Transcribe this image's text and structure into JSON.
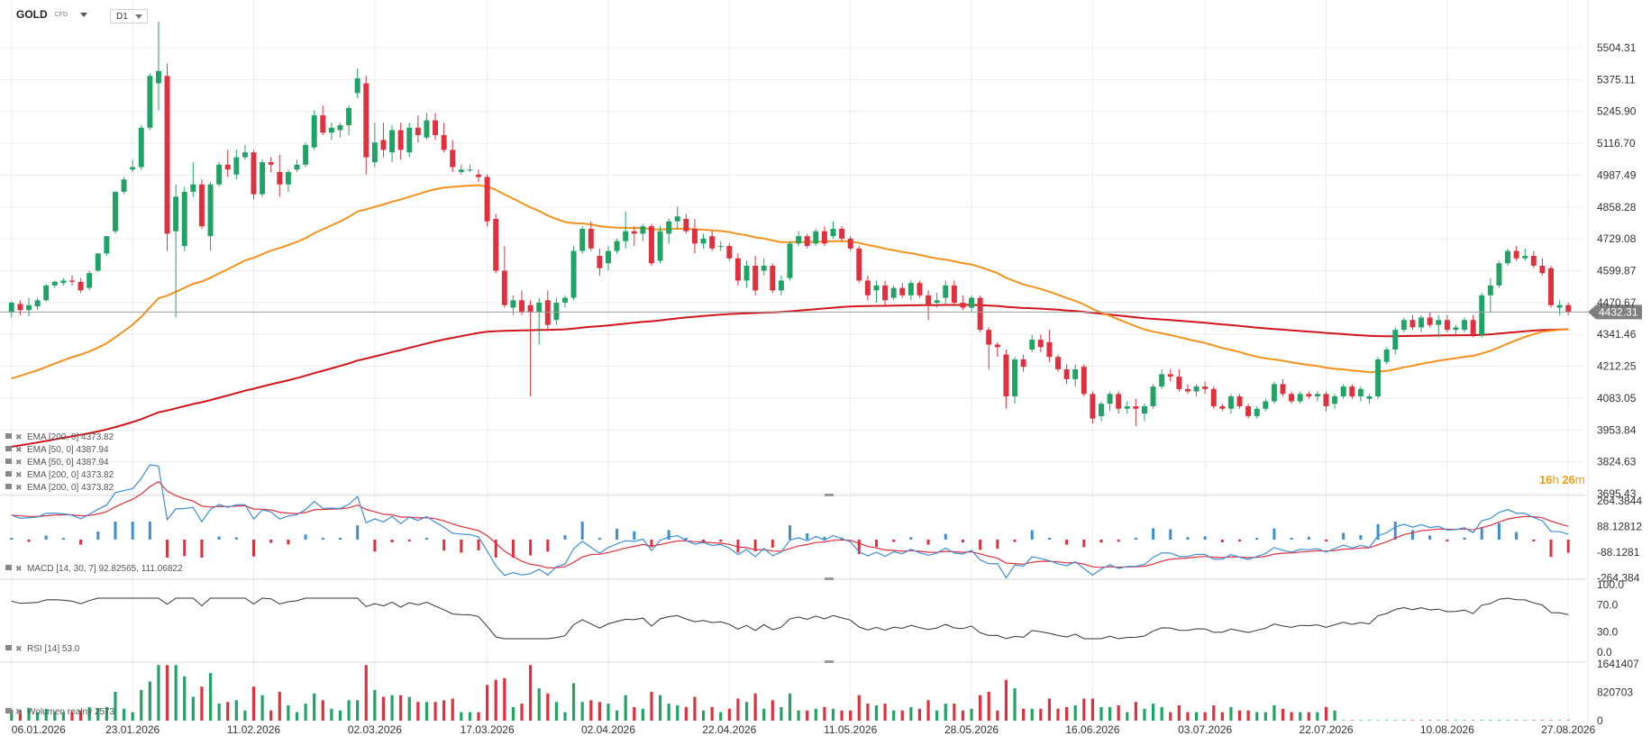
{
  "header": {
    "symbol": "GOLD",
    "symbol_sub": "CFD",
    "timeframe": "D1"
  },
  "countdown": {
    "h": "16",
    "h_unit": "h",
    "m": "26",
    "m_unit": "m"
  },
  "colors": {
    "up": "#21a366",
    "down": "#e0303e",
    "ema50": "#f5921e",
    "ema200": "#d2141c",
    "macd_line": "#3c8fd6",
    "macd_signal": "#e0303e",
    "rsi_line": "#333333",
    "grid": "#ececec"
  },
  "chart_data": {
    "type": "candlestick",
    "price_axis": {
      "ticks": [
        "5504.31",
        "5375.11",
        "5245.90",
        "5116.70",
        "4987.49",
        "4858.28",
        "4729.08",
        "4599.87",
        "4470.67",
        "4341.46",
        "4212.25",
        "4083.05",
        "3953.84",
        "3824.63",
        "3695.43"
      ],
      "last_price": "4432.31"
    },
    "x_labels": [
      "06.01.2026",
      "23.01.2026",
      "11.02.2026",
      "02.03.2026",
      "17.03.2026",
      "02.04.2026",
      "22.04.2026",
      "11.05.2026",
      "28.05.2026",
      "16.06.2026",
      "03.07.2026",
      "22.07.2026",
      "10.08.2026",
      "27.08.2026"
    ],
    "candles": [
      {
        "o": 4430,
        "h": 4475,
        "l": 4410,
        "c": 4470
      },
      {
        "o": 4465,
        "h": 4480,
        "l": 4420,
        "c": 4440
      },
      {
        "o": 4440,
        "h": 4490,
        "l": 4415,
        "c": 4460
      },
      {
        "o": 4455,
        "h": 4490,
        "l": 4440,
        "c": 4480
      },
      {
        "o": 4480,
        "h": 4545,
        "l": 4475,
        "c": 4540
      },
      {
        "o": 4540,
        "h": 4560,
        "l": 4530,
        "c": 4555
      },
      {
        "o": 4550,
        "h": 4570,
        "l": 4540,
        "c": 4560
      },
      {
        "o": 4560,
        "h": 4580,
        "l": 4540,
        "c": 4555
      },
      {
        "o": 4555,
        "h": 4570,
        "l": 4510,
        "c": 4520
      },
      {
        "o": 4530,
        "h": 4600,
        "l": 4520,
        "c": 4590
      },
      {
        "o": 4600,
        "h": 4670,
        "l": 4595,
        "c": 4670
      },
      {
        "o": 4670,
        "h": 4740,
        "l": 4660,
        "c": 4740
      },
      {
        "o": 4760,
        "h": 4920,
        "l": 4750,
        "c": 4920
      },
      {
        "o": 4920,
        "h": 4980,
        "l": 4910,
        "c": 4970
      },
      {
        "o": 5010,
        "h": 5050,
        "l": 5000,
        "c": 5020
      },
      {
        "o": 5020,
        "h": 5190,
        "l": 5010,
        "c": 5180
      },
      {
        "o": 5180,
        "h": 5400,
        "l": 5170,
        "c": 5390
      },
      {
        "o": 5360,
        "h": 5610,
        "l": 5250,
        "c": 5410
      },
      {
        "o": 5390,
        "h": 5440,
        "l": 4680,
        "c": 4750
      },
      {
        "o": 4760,
        "h": 4950,
        "l": 4410,
        "c": 4900
      },
      {
        "o": 4700,
        "h": 4940,
        "l": 4680,
        "c": 4920
      },
      {
        "o": 4920,
        "h": 5040,
        "l": 4900,
        "c": 4950
      },
      {
        "o": 4950,
        "h": 4970,
        "l": 4770,
        "c": 4780
      },
      {
        "o": 4740,
        "h": 4960,
        "l": 4680,
        "c": 4950
      },
      {
        "o": 4950,
        "h": 5040,
        "l": 4940,
        "c": 5030
      },
      {
        "o": 5030,
        "h": 5090,
        "l": 4980,
        "c": 5010
      },
      {
        "o": 4990,
        "h": 5090,
        "l": 4970,
        "c": 5060
      },
      {
        "o": 5060,
        "h": 5110,
        "l": 5050,
        "c": 5080
      },
      {
        "o": 5080,
        "h": 5090,
        "l": 4890,
        "c": 4910
      },
      {
        "o": 4910,
        "h": 5050,
        "l": 4900,
        "c": 5040
      },
      {
        "o": 5040,
        "h": 5060,
        "l": 5000,
        "c": 5030
      },
      {
        "o": 5000,
        "h": 5070,
        "l": 4900,
        "c": 4950
      },
      {
        "o": 4950,
        "h": 5010,
        "l": 4920,
        "c": 5000
      },
      {
        "o": 5010,
        "h": 5050,
        "l": 5000,
        "c": 5030
      },
      {
        "o": 5030,
        "h": 5120,
        "l": 5020,
        "c": 5110
      },
      {
        "o": 5100,
        "h": 5250,
        "l": 5090,
        "c": 5230
      },
      {
        "o": 5230,
        "h": 5270,
        "l": 5150,
        "c": 5160
      },
      {
        "o": 5160,
        "h": 5200,
        "l": 5130,
        "c": 5180
      },
      {
        "o": 5170,
        "h": 5200,
        "l": 5140,
        "c": 5190
      },
      {
        "o": 5190,
        "h": 5270,
        "l": 5150,
        "c": 5260
      },
      {
        "o": 5320,
        "h": 5420,
        "l": 5300,
        "c": 5380
      },
      {
        "o": 5360,
        "h": 5390,
        "l": 4990,
        "c": 5060
      },
      {
        "o": 5040,
        "h": 5200,
        "l": 5020,
        "c": 5120
      },
      {
        "o": 5130,
        "h": 5200,
        "l": 5060,
        "c": 5090
      },
      {
        "o": 5080,
        "h": 5190,
        "l": 5040,
        "c": 5170
      },
      {
        "o": 5170,
        "h": 5200,
        "l": 5050,
        "c": 5090
      },
      {
        "o": 5080,
        "h": 5200,
        "l": 5060,
        "c": 5180
      },
      {
        "o": 5180,
        "h": 5230,
        "l": 5120,
        "c": 5150
      },
      {
        "o": 5140,
        "h": 5240,
        "l": 5130,
        "c": 5210
      },
      {
        "o": 5210,
        "h": 5240,
        "l": 5130,
        "c": 5150
      },
      {
        "o": 5150,
        "h": 5200,
        "l": 5080,
        "c": 5090
      },
      {
        "o": 5090,
        "h": 5130,
        "l": 5000,
        "c": 5020
      },
      {
        "o": 5000,
        "h": 5030,
        "l": 4990,
        "c": 5010
      },
      {
        "o": 5010,
        "h": 5030,
        "l": 5000,
        "c": 5010
      },
      {
        "o": 4990,
        "h": 5010,
        "l": 4960,
        "c": 4980
      },
      {
        "o": 4980,
        "h": 4990,
        "l": 4780,
        "c": 4800
      },
      {
        "o": 4810,
        "h": 4830,
        "l": 4590,
        "c": 4600
      },
      {
        "o": 4600,
        "h": 4700,
        "l": 4450,
        "c": 4460
      },
      {
        "o": 4450,
        "h": 4500,
        "l": 4420,
        "c": 4480
      },
      {
        "o": 4480,
        "h": 4520,
        "l": 4420,
        "c": 4430
      },
      {
        "o": 4460,
        "h": 4480,
        "l": 4090,
        "c": 4430
      },
      {
        "o": 4430,
        "h": 4490,
        "l": 4300,
        "c": 4470
      },
      {
        "o": 4480,
        "h": 4520,
        "l": 4360,
        "c": 4380
      },
      {
        "o": 4400,
        "h": 4490,
        "l": 4380,
        "c": 4470
      },
      {
        "o": 4470,
        "h": 4500,
        "l": 4450,
        "c": 4490
      },
      {
        "o": 4490,
        "h": 4700,
        "l": 4480,
        "c": 4680
      },
      {
        "o": 4680,
        "h": 4780,
        "l": 4670,
        "c": 4770
      },
      {
        "o": 4770,
        "h": 4800,
        "l": 4680,
        "c": 4690
      },
      {
        "o": 4660,
        "h": 4690,
        "l": 4580,
        "c": 4610
      },
      {
        "o": 4630,
        "h": 4700,
        "l": 4600,
        "c": 4680
      },
      {
        "o": 4680,
        "h": 4730,
        "l": 4670,
        "c": 4720
      },
      {
        "o": 4720,
        "h": 4840,
        "l": 4690,
        "c": 4760
      },
      {
        "o": 4760,
        "h": 4780,
        "l": 4700,
        "c": 4750
      },
      {
        "o": 4750,
        "h": 4790,
        "l": 4720,
        "c": 4780
      },
      {
        "o": 4780,
        "h": 4790,
        "l": 4620,
        "c": 4630
      },
      {
        "o": 4640,
        "h": 4780,
        "l": 4630,
        "c": 4760
      },
      {
        "o": 4750,
        "h": 4810,
        "l": 4710,
        "c": 4800
      },
      {
        "o": 4800,
        "h": 4860,
        "l": 4770,
        "c": 4820
      },
      {
        "o": 4810,
        "h": 4830,
        "l": 4750,
        "c": 4760
      },
      {
        "o": 4770,
        "h": 4810,
        "l": 4670,
        "c": 4710
      },
      {
        "o": 4710,
        "h": 4750,
        "l": 4690,
        "c": 4730
      },
      {
        "o": 4740,
        "h": 4760,
        "l": 4680,
        "c": 4690
      },
      {
        "o": 4700,
        "h": 4720,
        "l": 4680,
        "c": 4700
      },
      {
        "o": 4700,
        "h": 4710,
        "l": 4640,
        "c": 4650
      },
      {
        "o": 4650,
        "h": 4670,
        "l": 4540,
        "c": 4560
      },
      {
        "o": 4560,
        "h": 4640,
        "l": 4530,
        "c": 4620
      },
      {
        "o": 4620,
        "h": 4660,
        "l": 4500,
        "c": 4520
      },
      {
        "o": 4600,
        "h": 4650,
        "l": 4580,
        "c": 4620
      },
      {
        "o": 4620,
        "h": 4630,
        "l": 4510,
        "c": 4520
      },
      {
        "o": 4520,
        "h": 4580,
        "l": 4500,
        "c": 4560
      },
      {
        "o": 4570,
        "h": 4720,
        "l": 4560,
        "c": 4710
      },
      {
        "o": 4710,
        "h": 4760,
        "l": 4700,
        "c": 4740
      },
      {
        "o": 4740,
        "h": 4750,
        "l": 4690,
        "c": 4700
      },
      {
        "o": 4710,
        "h": 4770,
        "l": 4700,
        "c": 4760
      },
      {
        "o": 4760,
        "h": 4780,
        "l": 4700,
        "c": 4710
      },
      {
        "o": 4740,
        "h": 4800,
        "l": 4730,
        "c": 4770
      },
      {
        "o": 4770,
        "h": 4780,
        "l": 4720,
        "c": 4730
      },
      {
        "o": 4730,
        "h": 4740,
        "l": 4680,
        "c": 4690
      },
      {
        "o": 4690,
        "h": 4700,
        "l": 4550,
        "c": 4560
      },
      {
        "o": 4560,
        "h": 4580,
        "l": 4480,
        "c": 4500
      },
      {
        "o": 4520,
        "h": 4560,
        "l": 4470,
        "c": 4540
      },
      {
        "o": 4540,
        "h": 4560,
        "l": 4460,
        "c": 4480
      },
      {
        "o": 4490,
        "h": 4540,
        "l": 4480,
        "c": 4530
      },
      {
        "o": 4530,
        "h": 4550,
        "l": 4490,
        "c": 4500
      },
      {
        "o": 4500,
        "h": 4560,
        "l": 4480,
        "c": 4550
      },
      {
        "o": 4550,
        "h": 4560,
        "l": 4490,
        "c": 4500
      },
      {
        "o": 4500,
        "h": 4520,
        "l": 4400,
        "c": 4460
      },
      {
        "o": 4470,
        "h": 4510,
        "l": 4450,
        "c": 4480
      },
      {
        "o": 4490,
        "h": 4560,
        "l": 4460,
        "c": 4540
      },
      {
        "o": 4540,
        "h": 4560,
        "l": 4460,
        "c": 4470
      },
      {
        "o": 4470,
        "h": 4500,
        "l": 4440,
        "c": 4450
      },
      {
        "o": 4450,
        "h": 4500,
        "l": 4430,
        "c": 4490
      },
      {
        "o": 4490,
        "h": 4500,
        "l": 4350,
        "c": 4360
      },
      {
        "o": 4360,
        "h": 4370,
        "l": 4200,
        "c": 4300
      },
      {
        "o": 4300,
        "h": 4310,
        "l": 4250,
        "c": 4290
      },
      {
        "o": 4260,
        "h": 4280,
        "l": 4040,
        "c": 4090
      },
      {
        "o": 4090,
        "h": 4250,
        "l": 4060,
        "c": 4240
      },
      {
        "o": 4240,
        "h": 4260,
        "l": 4190,
        "c": 4210
      },
      {
        "o": 4280,
        "h": 4340,
        "l": 4270,
        "c": 4320
      },
      {
        "o": 4320,
        "h": 4340,
        "l": 4270,
        "c": 4290
      },
      {
        "o": 4310,
        "h": 4360,
        "l": 4230,
        "c": 4250
      },
      {
        "o": 4250,
        "h": 4260,
        "l": 4190,
        "c": 4200
      },
      {
        "o": 4200,
        "h": 4220,
        "l": 4140,
        "c": 4160
      },
      {
        "o": 4160,
        "h": 4220,
        "l": 4130,
        "c": 4200
      },
      {
        "o": 4210,
        "h": 4220,
        "l": 4090,
        "c": 4100
      },
      {
        "o": 4100,
        "h": 4110,
        "l": 3980,
        "c": 4000
      },
      {
        "o": 4010,
        "h": 4070,
        "l": 3990,
        "c": 4060
      },
      {
        "o": 4060,
        "h": 4110,
        "l": 4030,
        "c": 4100
      },
      {
        "o": 4100,
        "h": 4110,
        "l": 4020,
        "c": 4040
      },
      {
        "o": 4040,
        "h": 4070,
        "l": 4020,
        "c": 4050
      },
      {
        "o": 4050,
        "h": 4080,
        "l": 3970,
        "c": 4040
      },
      {
        "o": 4020,
        "h": 4060,
        "l": 3990,
        "c": 4050
      },
      {
        "o": 4050,
        "h": 4140,
        "l": 4040,
        "c": 4130
      },
      {
        "o": 4130,
        "h": 4200,
        "l": 4120,
        "c": 4180
      },
      {
        "o": 4180,
        "h": 4200,
        "l": 4150,
        "c": 4170
      },
      {
        "o": 4170,
        "h": 4200,
        "l": 4110,
        "c": 4120
      },
      {
        "o": 4120,
        "h": 4140,
        "l": 4100,
        "c": 4110
      },
      {
        "o": 4110,
        "h": 4140,
        "l": 4090,
        "c": 4130
      },
      {
        "o": 4130,
        "h": 4150,
        "l": 4100,
        "c": 4120
      },
      {
        "o": 4120,
        "h": 4130,
        "l": 4040,
        "c": 4050
      },
      {
        "o": 4050,
        "h": 4060,
        "l": 4030,
        "c": 4040
      },
      {
        "o": 4040,
        "h": 4100,
        "l": 4020,
        "c": 4090
      },
      {
        "o": 4090,
        "h": 4100,
        "l": 4040,
        "c": 4050
      },
      {
        "o": 4050,
        "h": 4060,
        "l": 4000,
        "c": 4010
      },
      {
        "o": 4010,
        "h": 4050,
        "l": 4000,
        "c": 4040
      },
      {
        "o": 4040,
        "h": 4080,
        "l": 4030,
        "c": 4070
      },
      {
        "o": 4070,
        "h": 4150,
        "l": 4060,
        "c": 4140
      },
      {
        "o": 4140,
        "h": 4160,
        "l": 4090,
        "c": 4100
      },
      {
        "o": 4100,
        "h": 4110,
        "l": 4060,
        "c": 4070
      },
      {
        "o": 4070,
        "h": 4110,
        "l": 4060,
        "c": 4100
      },
      {
        "o": 4100,
        "h": 4110,
        "l": 4080,
        "c": 4090
      },
      {
        "o": 4090,
        "h": 4110,
        "l": 4070,
        "c": 4100
      },
      {
        "o": 4100,
        "h": 4110,
        "l": 4030,
        "c": 4050
      },
      {
        "o": 4060,
        "h": 4100,
        "l": 4040,
        "c": 4090
      },
      {
        "o": 4090,
        "h": 4140,
        "l": 4080,
        "c": 4130
      },
      {
        "o": 4130,
        "h": 4140,
        "l": 4080,
        "c": 4090
      },
      {
        "o": 4090,
        "h": 4130,
        "l": 4070,
        "c": 4120
      },
      {
        "o": 4080,
        "h": 4100,
        "l": 4060,
        "c": 4090
      },
      {
        "o": 4090,
        "h": 4250,
        "l": 4080,
        "c": 4240
      },
      {
        "o": 4230,
        "h": 4290,
        "l": 4220,
        "c": 4280
      },
      {
        "o": 4280,
        "h": 4370,
        "l": 4260,
        "c": 4360
      },
      {
        "o": 4360,
        "h": 4410,
        "l": 4350,
        "c": 4400
      },
      {
        "o": 4400,
        "h": 4420,
        "l": 4360,
        "c": 4370
      },
      {
        "o": 4370,
        "h": 4420,
        "l": 4350,
        "c": 4410
      },
      {
        "o": 4410,
        "h": 4430,
        "l": 4370,
        "c": 4380
      },
      {
        "o": 4380,
        "h": 4420,
        "l": 4330,
        "c": 4400
      },
      {
        "o": 4400,
        "h": 4420,
        "l": 4350,
        "c": 4360
      },
      {
        "o": 4360,
        "h": 4380,
        "l": 4340,
        "c": 4370
      },
      {
        "o": 4360,
        "h": 4410,
        "l": 4350,
        "c": 4400
      },
      {
        "o": 4400,
        "h": 4420,
        "l": 4330,
        "c": 4340
      },
      {
        "o": 4340,
        "h": 4510,
        "l": 4330,
        "c": 4500
      },
      {
        "o": 4500,
        "h": 4570,
        "l": 4430,
        "c": 4540
      },
      {
        "o": 4540,
        "h": 4640,
        "l": 4530,
        "c": 4630
      },
      {
        "o": 4630,
        "h": 4690,
        "l": 4620,
        "c": 4680
      },
      {
        "o": 4680,
        "h": 4700,
        "l": 4640,
        "c": 4650
      },
      {
        "o": 4650,
        "h": 4690,
        "l": 4640,
        "c": 4660
      },
      {
        "o": 4660,
        "h": 4680,
        "l": 4610,
        "c": 4620
      },
      {
        "o": 4620,
        "h": 4650,
        "l": 4580,
        "c": 4590
      },
      {
        "o": 4610,
        "h": 4620,
        "l": 4450,
        "c": 4460
      },
      {
        "o": 4450,
        "h": 4480,
        "l": 4420,
        "c": 4460
      },
      {
        "o": 4460,
        "h": 4470,
        "l": 4420,
        "c": 4432
      }
    ],
    "ema_legend": [
      {
        "label": "EMA [200, 0] 4373.82",
        "color": "#d2141c"
      },
      {
        "label": "EMA [50, 0] 4387.94",
        "color": "#f5921e"
      },
      {
        "label": "EMA [50, 0] 4387.94",
        "color": "#f5921e"
      },
      {
        "label": "EMA [200, 0] 4373.82",
        "color": "#d2141c"
      },
      {
        "label": "EMA [200, 0] 4373.82",
        "color": "#d2141c"
      }
    ],
    "macd": {
      "label": "MACD [14, 30, 7] 92.82565, 111.06822",
      "ticks": [
        "264.3844",
        "88.12812",
        "-88.1281",
        "-264.384"
      ]
    },
    "rsi": {
      "label": "RSI [14] 53.0",
      "ticks": [
        "100.0",
        "70.0",
        "30.0",
        "0.0"
      ]
    },
    "volume": {
      "label": "Wolumen realny 2573",
      "ticks": [
        "1641407",
        "820703",
        "0"
      ]
    }
  }
}
